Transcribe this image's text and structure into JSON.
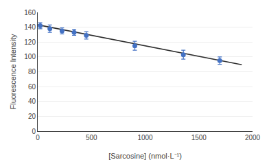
{
  "chart_data": {
    "type": "scatter",
    "xlabel": "[Sarcosine] (nmol·L⁻¹)",
    "ylabel": "Fluorescence Intensity",
    "xlim": [
      0,
      2000
    ],
    "ylim": [
      0,
      160
    ],
    "xticks": [
      0,
      500,
      1000,
      1500,
      2000
    ],
    "yticks": [
      0,
      20,
      40,
      60,
      80,
      100,
      120,
      140,
      160
    ],
    "grid": true,
    "series": [
      {
        "type": "line",
        "color": "#2d2d2d",
        "line_style": "solid",
        "x": [
          0,
          1900
        ],
        "values": [
          143.2,
          89.506
        ]
      },
      {
        "type": "scatter",
        "color": "#4472C4",
        "marker": "circle",
        "x": [
          23,
          113,
          226,
          339,
          452,
          904,
          1356,
          1695
        ],
        "values": [
          142,
          138,
          135,
          133,
          129,
          115,
          103,
          95
        ],
        "errors": [
          4,
          5,
          4,
          4,
          5,
          6,
          6,
          5
        ]
      }
    ]
  }
}
